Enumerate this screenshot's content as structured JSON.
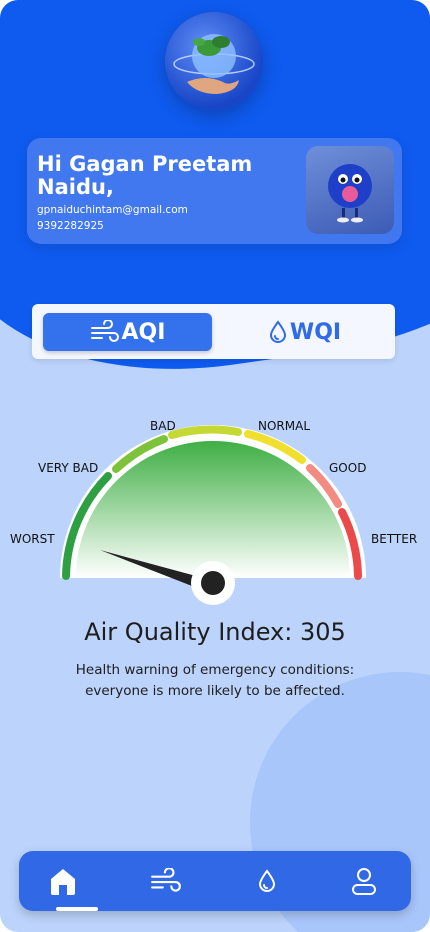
{
  "profile": {
    "greeting": "Hi Gagan Preetam Naidu,",
    "email": "gpnaiduchintam@gmail.com",
    "phone": "9392282925"
  },
  "toggle": {
    "tabs": [
      {
        "label": "AQI",
        "icon": "wind-icon",
        "selected": true
      },
      {
        "label": "WQI",
        "icon": "water-drop-icon",
        "selected": false
      }
    ]
  },
  "gauge": {
    "labels": {
      "worst": "WORST",
      "very_bad": "VERY BAD",
      "bad": "BAD",
      "normal": "NORMAL",
      "good": "GOOD",
      "better": "BETTER"
    },
    "value": 305,
    "colors": {
      "worst": "#2ea043",
      "very_bad": "#7cc23a",
      "bad": "#c6d833",
      "normal": "#f0df2f",
      "good": "#f38b82",
      "better": "#ea4a4a"
    }
  },
  "aqi": {
    "title": "Air Quality Index: 305",
    "description_line1": "Health warning of emergency conditions:",
    "description_line2": "everyone is more likely to be affected."
  },
  "nav": {
    "items": [
      "home-icon",
      "wind-icon",
      "water-drop-icon",
      "profile-icon"
    ],
    "active": "home-icon"
  },
  "theme": {
    "primary": "#0f5bf0",
    "background": "#bcd3fb"
  }
}
